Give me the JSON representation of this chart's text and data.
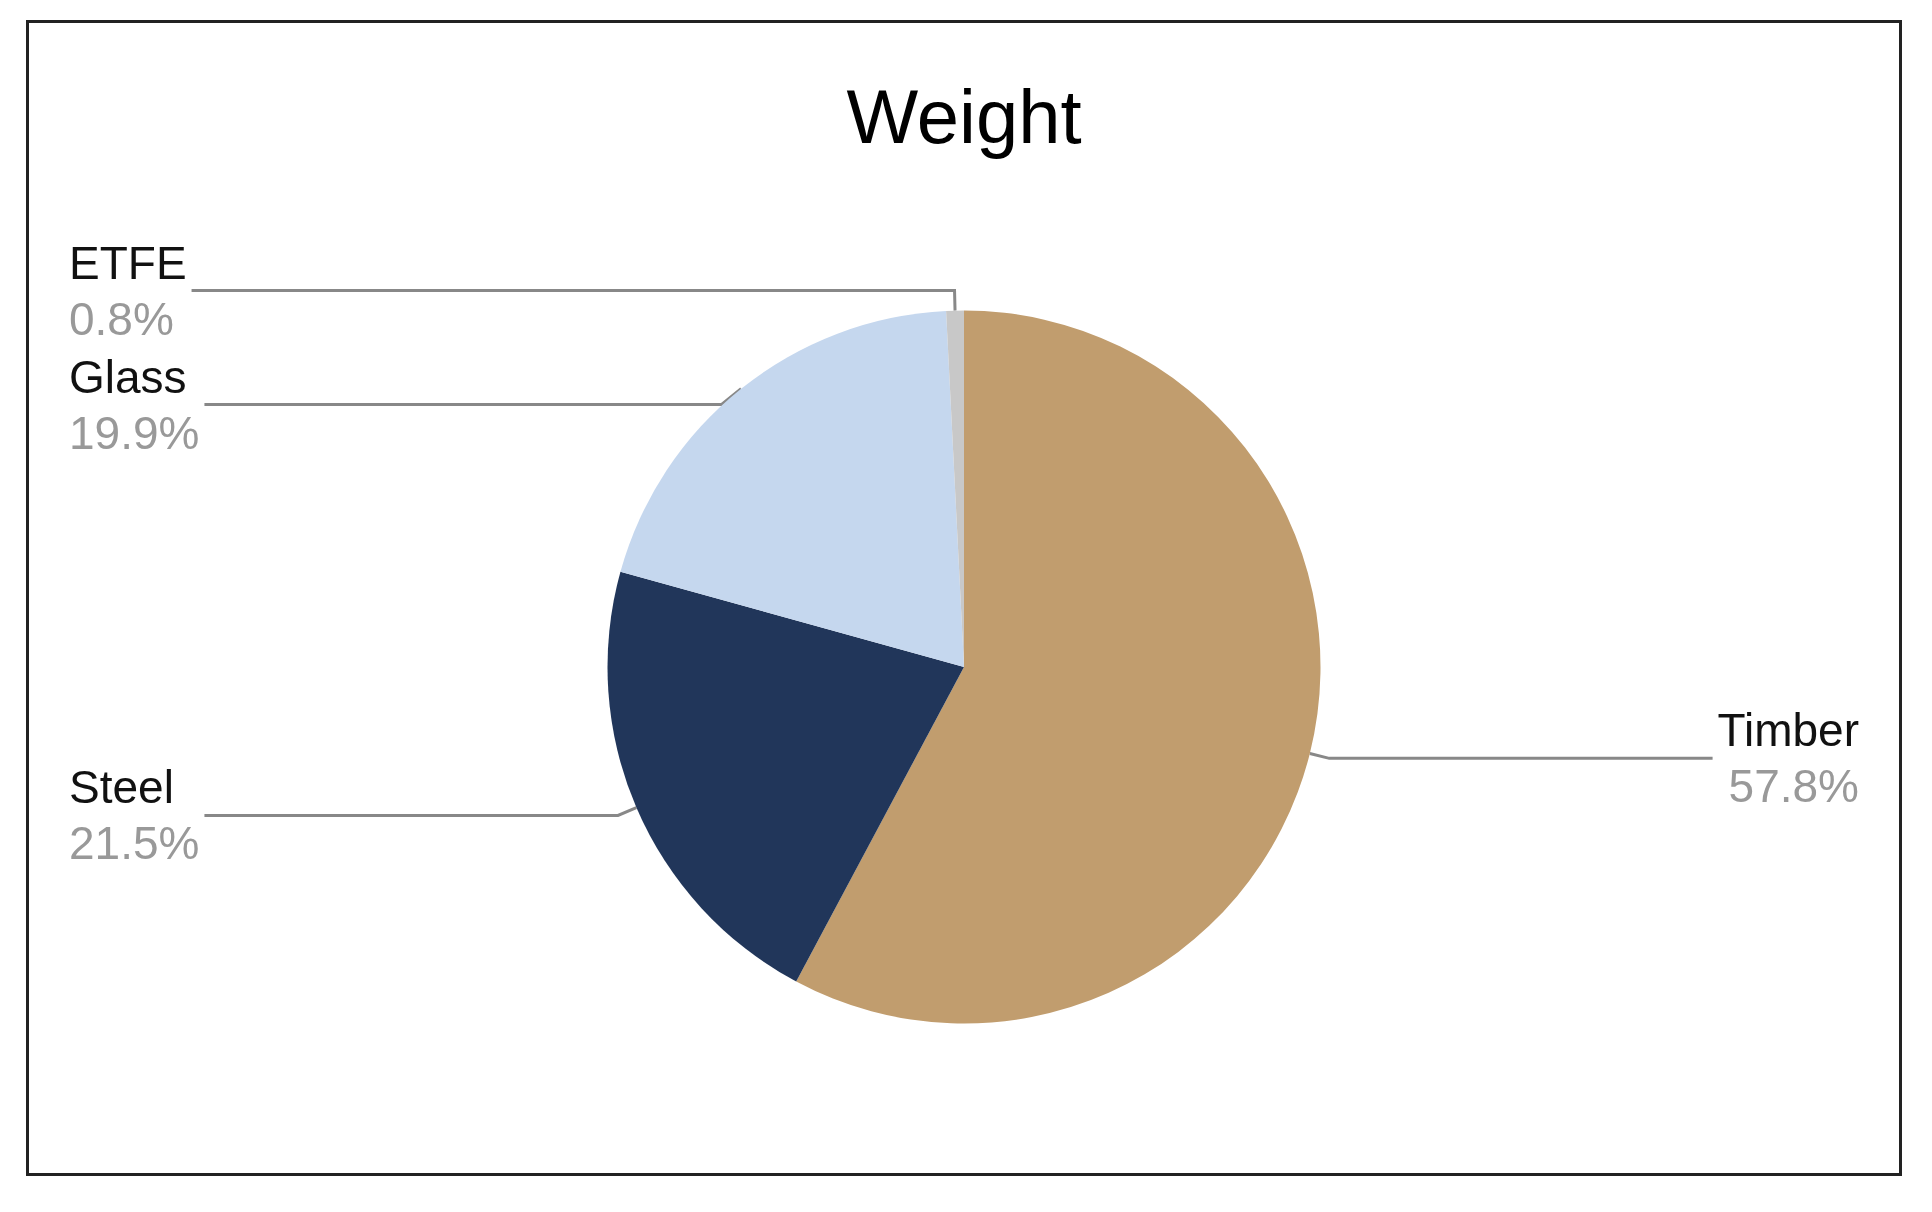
{
  "chart_data": {
    "type": "pie",
    "title": "Weight",
    "categories": [
      "Timber",
      "Steel",
      "Glass",
      "ETFE"
    ],
    "values": [
      57.8,
      21.5,
      19.9,
      0.8
    ],
    "value_labels": [
      "57.8%",
      "21.5%",
      "19.9%",
      "0.8%"
    ],
    "colors": [
      "#c19d6e",
      "#21365a",
      "#c5d7ee",
      "#c8c8c8"
    ],
    "legend": false
  }
}
